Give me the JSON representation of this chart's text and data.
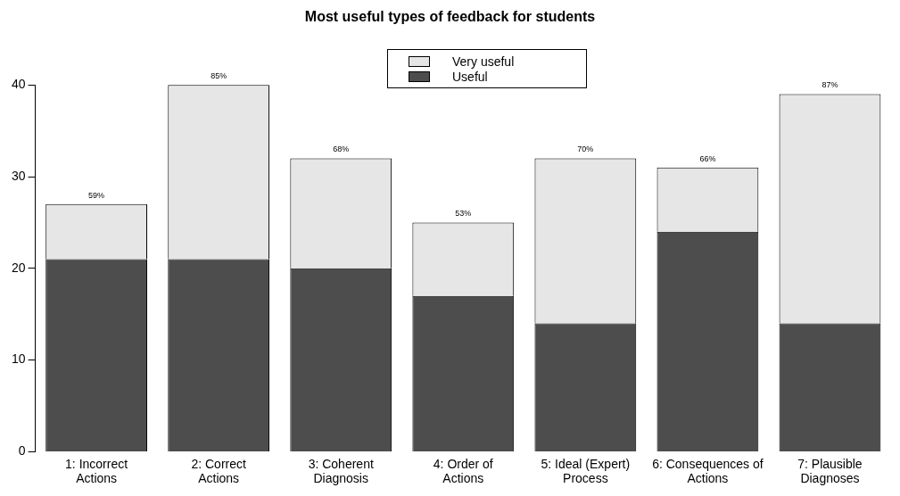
{
  "chart_data": {
    "type": "bar",
    "title": "Most useful types of feedback for students",
    "categories": [
      "1: Incorrect Actions",
      "2: Correct Actions",
      "3: Coherent Diagnosis",
      "4: Order of Actions",
      "5: Ideal (Expert) Process",
      "6: Consequences of Actions",
      "7: Plausible Diagnoses"
    ],
    "stacked": true,
    "series": [
      {
        "name": "Useful",
        "color": "#4d4d4d",
        "values": [
          21,
          21,
          20,
          17,
          14,
          24,
          14
        ]
      },
      {
        "name": "Very useful",
        "color": "#e6e6e6",
        "values": [
          6,
          19,
          12,
          8,
          18,
          7,
          25
        ]
      }
    ],
    "annotations": [
      {
        "text": "59%",
        "x": "1: Incorrect Actions",
        "y": 27
      },
      {
        "text": "85%",
        "x": "2: Correct Actions",
        "y": 40
      },
      {
        "text": "68%",
        "x": "3: Coherent Diagnosis",
        "y": 32
      },
      {
        "text": "53%",
        "x": "4: Order of Actions",
        "y": 25
      },
      {
        "text": "70%",
        "x": "5: Ideal (Expert) Process",
        "y": 32
      },
      {
        "text": "66%",
        "x": "6: Consequences of Actions",
        "y": 31
      },
      {
        "text": "87%",
        "x": "7: Plausible Diagnoses",
        "y": 39
      }
    ],
    "ylim": [
      0,
      40
    ],
    "yticks": [
      0,
      10,
      20,
      30,
      40
    ],
    "grid": false,
    "legend": "top"
  }
}
